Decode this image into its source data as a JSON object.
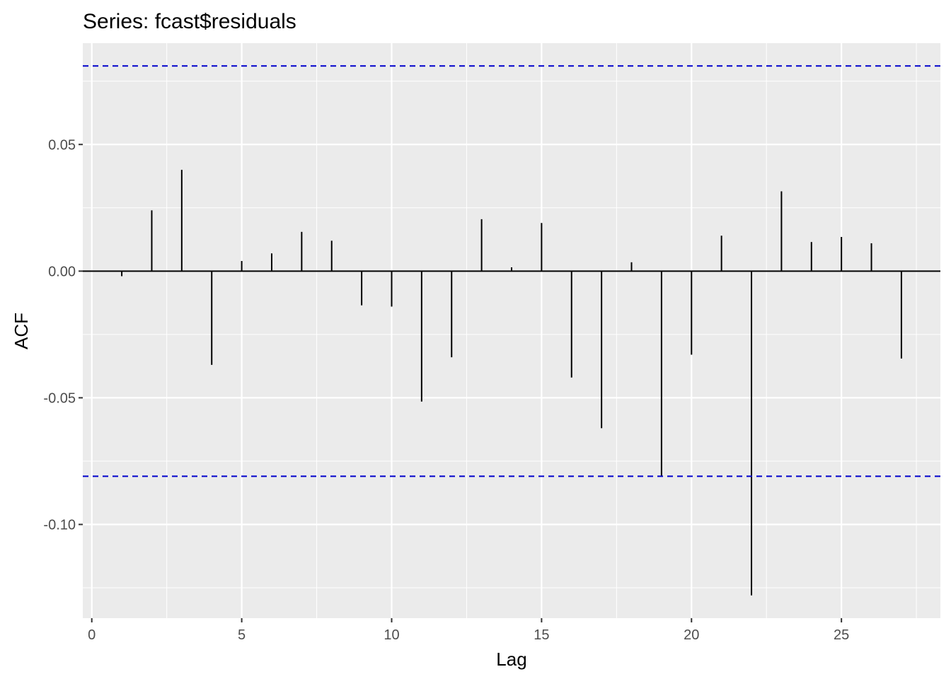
{
  "chart_data": {
    "type": "bar",
    "title": "Series: fcast$residuals",
    "xlabel": "Lag",
    "ylabel": "ACF",
    "xlim": [
      -0.3,
      28.3
    ],
    "ylim": [
      -0.137,
      0.09
    ],
    "x_ticks": [
      0,
      5,
      10,
      15,
      20,
      25
    ],
    "x_tick_labels": [
      "0",
      "5",
      "10",
      "15",
      "20",
      "25"
    ],
    "y_ticks": [
      0.05,
      0.0,
      -0.05,
      -0.1
    ],
    "y_tick_labels": [
      "0.05",
      "0.00",
      "-0.05",
      "-0.10"
    ],
    "confidence_bound": 0.081,
    "grid": true,
    "lags": [
      1,
      2,
      3,
      4,
      5,
      6,
      7,
      8,
      9,
      10,
      11,
      12,
      13,
      14,
      15,
      16,
      17,
      18,
      19,
      20,
      21,
      22,
      23,
      24,
      25,
      26,
      27
    ],
    "values": [
      -0.002,
      0.024,
      0.04,
      -0.037,
      0.004,
      0.007,
      0.0155,
      0.012,
      -0.0135,
      -0.014,
      -0.0515,
      -0.034,
      0.0205,
      0.0015,
      0.019,
      -0.042,
      -0.062,
      0.0035,
      -0.081,
      -0.033,
      0.014,
      -0.128,
      0.0315,
      0.0115,
      0.0135,
      0.011,
      -0.0345
    ],
    "colors": {
      "panel": "#ebebeb",
      "grid": "#ffffff",
      "bar": "#000000",
      "bound": "#0000cc",
      "tick": "#333333"
    }
  }
}
